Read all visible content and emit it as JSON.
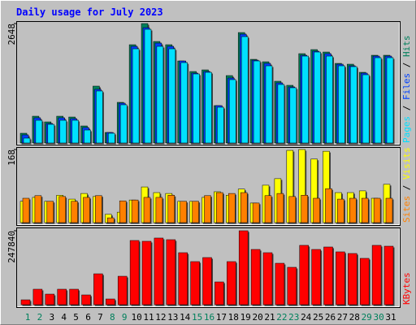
{
  "chart_data": {
    "type": "bar",
    "title": "Daily usage for July 2023",
    "categories": [
      "1",
      "2",
      "3",
      "4",
      "5",
      "6",
      "7",
      "8",
      "9",
      "10",
      "11",
      "12",
      "13",
      "14",
      "15",
      "16",
      "17",
      "18",
      "19",
      "20",
      "21",
      "22",
      "23",
      "24",
      "25",
      "26",
      "27",
      "28",
      "29",
      "30",
      "31"
    ],
    "category_colors": [
      "#00805c",
      "#00805c",
      "#000000",
      "#000000",
      "#000000",
      "#000000",
      "#000000",
      "#00805c",
      "#00805c",
      "#000000",
      "#000000",
      "#000000",
      "#000000",
      "#000000",
      "#00805c",
      "#00805c",
      "#000000",
      "#000000",
      "#000000",
      "#000000",
      "#000000",
      "#00805c",
      "#00805c",
      "#000000",
      "#000000",
      "#000000",
      "#000000",
      "#000000",
      "#00805c",
      "#00805c",
      "#000000"
    ],
    "legend_separator": " / ",
    "panels": [
      {
        "ylim": [
          0,
          2648
        ],
        "yticks": [
          2648
        ],
        "series": [
          {
            "name": "Hits",
            "color": "#00805c",
            "values": [
              216,
              594,
              468,
              594,
              576,
              378,
              1261,
              234,
              901,
              2179,
              2648,
              2251,
              2179,
              1819,
              1585,
              1621,
              829,
              1495,
              2449,
              1855,
              1801,
              1369,
              1279,
              1981,
              2071,
              2017,
              1765,
              1747,
              1567,
              1945,
              1945
            ]
          },
          {
            "name": "Files",
            "color": "#0040ff",
            "values": [
              180,
              558,
              432,
              558,
              540,
              342,
              1190,
              234,
              883,
              2143,
              2557,
              2215,
              2143,
              1819,
              1549,
              1585,
              829,
              1441,
              2413,
              1837,
              1765,
              1333,
              1243,
              1945,
              2035,
              1981,
              1747,
              1711,
              1549,
              1927,
              1927
            ]
          },
          {
            "name": "Pages",
            "color": "#00e0ff",
            "values": [
              108,
              504,
              414,
              504,
              504,
              288,
              1153,
              216,
              847,
              2089,
              2521,
              2143,
              2089,
              1783,
              1531,
              1567,
              793,
              1405,
              2359,
              1819,
              1711,
              1297,
              1225,
              1927,
              2017,
              1927,
              1711,
              1693,
              1513,
              1891,
              1891
            ]
          }
        ]
      },
      {
        "ylim": [
          0,
          168
        ],
        "yticks": [
          168
        ],
        "series": [
          {
            "name": "Visits",
            "color": "#ffff00",
            "values": [
              49,
              58,
              49,
              63,
              54,
              67,
              60,
              19,
              24,
              52,
              82,
              69,
              67,
              49,
              49,
              58,
              71,
              63,
              77,
              45,
              86,
              101,
              166,
              168,
              146,
              164,
              69,
              69,
              73,
              56,
              88
            ]
          },
          {
            "name": "Sites",
            "color": "#ff8000",
            "values": [
              56,
              62,
              49,
              60,
              49,
              58,
              62,
              11,
              50,
              52,
              58,
              58,
              63,
              49,
              49,
              62,
              69,
              67,
              69,
              45,
              62,
              67,
              60,
              63,
              56,
              78,
              54,
              56,
              56,
              56,
              56
            ]
          }
        ]
      },
      {
        "ylim": [
          0,
          247840
        ],
        "yticks": [
          247840
        ],
        "series": [
          {
            "name": "KBytes",
            "color": "#ff0000",
            "values": [
              16300,
              51800,
              35400,
              51800,
              51800,
              32700,
              103500,
              19100,
              95300,
              215200,
              212500,
              223400,
              217900,
              174300,
              144400,
              158000,
              76300,
              144400,
              247840,
              185200,
              174300,
              138900,
              125300,
              198900,
              185200,
              193400,
              177100,
              171600,
              155300,
              198900,
              196100
            ]
          }
        ]
      }
    ]
  }
}
